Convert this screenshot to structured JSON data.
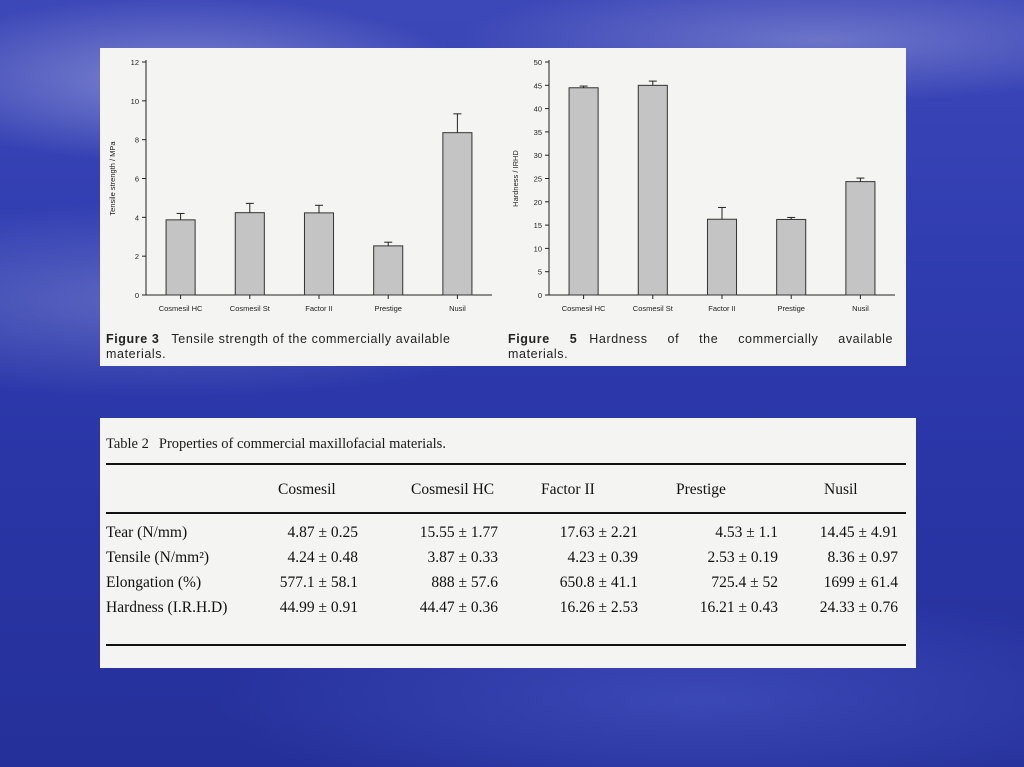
{
  "chart_data": [
    {
      "type": "bar",
      "categories": [
        "Cosmesil HC",
        "Cosmesil St",
        "Factor II",
        "Prestige",
        "Nusil"
      ],
      "values": [
        3.87,
        4.24,
        4.23,
        2.53,
        8.36
      ],
      "errors": [
        0.33,
        0.48,
        0.39,
        0.19,
        0.97
      ],
      "ylabel": "Tensile strength / MPa",
      "xlabel": "",
      "ylim": [
        0,
        12
      ],
      "yticks": [
        0,
        2,
        4,
        6,
        8,
        10,
        12
      ],
      "caption_label": "Figure 3",
      "caption_text": "Tensile strength of the commercially available materials."
    },
    {
      "type": "bar",
      "categories": [
        "Cosmesil HC",
        "Cosmesil St",
        "Factor II",
        "Prestige",
        "Nusil"
      ],
      "values": [
        44.47,
        44.99,
        16.26,
        16.21,
        24.33
      ],
      "errors": [
        0.36,
        0.91,
        2.53,
        0.43,
        0.76
      ],
      "ylabel": "Hardness / IRHD",
      "xlabel": "",
      "ylim": [
        0,
        50
      ],
      "yticks": [
        0,
        5,
        10,
        15,
        20,
        25,
        30,
        35,
        40,
        45,
        50
      ],
      "caption_label": "Figure 5",
      "caption_line1": "Hardness of the commercially available",
      "caption_line2": "materials."
    }
  ],
  "table": {
    "label": "Table 2",
    "title": "Properties of commercial maxillofacial materials.",
    "columns": [
      "",
      "Cosmesil",
      "Cosmesil HC",
      "Factor II",
      "Prestige",
      "Nusil"
    ],
    "rows": [
      {
        "label": "Tear (N/mm)",
        "cells": [
          "4.87 ± 0.25",
          "15.55 ± 1.77",
          "17.63 ± 2.21",
          "4.53 ± 1.1",
          "14.45 ± 4.91"
        ]
      },
      {
        "label": "Tensile (N/mm²)",
        "cells": [
          "4.24 ± 0.48",
          "3.87 ± 0.33",
          "4.23 ± 0.39",
          "2.53 ± 0.19",
          "8.36 ± 0.97"
        ]
      },
      {
        "label": "Elongation (%)",
        "cells": [
          "577.1 ± 58.1",
          "888 ± 57.6",
          "650.8 ± 41.1",
          "725.4 ± 52",
          "1699 ± 61.4"
        ]
      },
      {
        "label": "Hardness (I.R.H.D)",
        "cells": [
          "44.99 ± 0.91",
          "44.47 ± 0.36",
          "16.26 ± 2.53",
          "16.21 ± 0.43",
          "24.33 ± 0.76"
        ]
      }
    ]
  },
  "colors": {
    "bar_fill": "#c4c4c4",
    "bar_stroke": "#333333",
    "panel": "#f4f4f2"
  }
}
